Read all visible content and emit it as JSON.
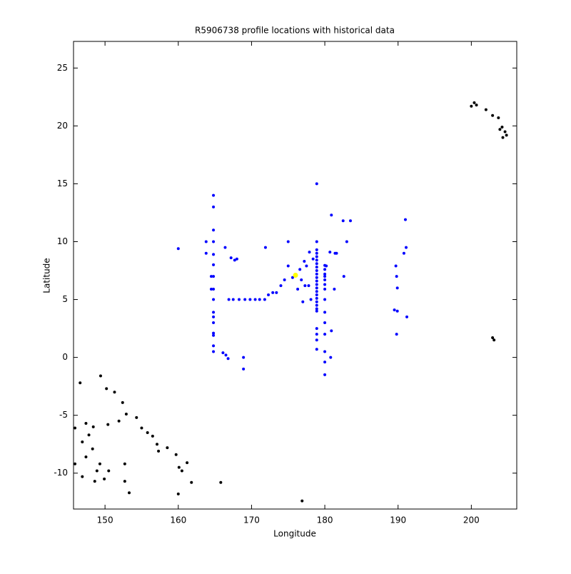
{
  "chart_data": {
    "type": "scatter",
    "title": "R5906738 profile locations with historical data",
    "xlabel": "Longitude",
    "ylabel": "Latitude",
    "xlim": [
      145.7,
      206.2
    ],
    "ylim": [
      -13.1,
      27.3
    ],
    "xticks": [
      150,
      160,
      170,
      180,
      190,
      200
    ],
    "yticks": [
      -10,
      -5,
      0,
      5,
      10,
      15,
      20,
      25
    ],
    "series": [
      {
        "color": "#000000",
        "x": [
          200,
          200.4,
          200.7,
          202,
          202.9,
          203.7,
          204.2,
          204.6,
          204.8,
          204.3,
          203.9,
          202.9,
          203.1,
          176.9,
          165.8,
          160,
          153.3,
          152.7,
          152.7,
          154.3,
          155,
          155.8,
          156.5,
          157.1,
          158.5,
          159.7,
          160.1,
          161.2,
          161.8,
          157.3,
          160.5,
          146.6,
          149.4,
          150.2,
          151.3,
          152.4,
          152.9,
          151.9,
          150.4,
          148.4,
          147.4,
          145.9,
          146.9,
          147.4,
          148.9,
          149.9,
          150.5,
          149.3,
          148.3,
          147.8,
          145.9,
          146.9,
          148.6
        ],
        "y": [
          21.7,
          22,
          21.8,
          21.4,
          20.9,
          20.7,
          19.9,
          19.5,
          19.2,
          19,
          19.7,
          1.7,
          1.5,
          -12.4,
          -10.8,
          -11.8,
          -11.7,
          -10.7,
          -9.2,
          -5.2,
          -6.1,
          -6.5,
          -6.8,
          -7.5,
          -7.8,
          -8.4,
          -9.5,
          -9.1,
          -10.8,
          -8.1,
          -9.8,
          -2.2,
          -1.6,
          -2.7,
          -3,
          -3.9,
          -4.9,
          -5.5,
          -5.8,
          -6,
          -5.7,
          -6.1,
          -7.3,
          -8.6,
          -9.8,
          -10.5,
          -9.8,
          -9.2,
          -7.9,
          -6.7,
          -9.2,
          -10.3,
          -10.7
        ]
      },
      {
        "color": "#0000ff",
        "x": [
          160,
          163.8,
          163.8,
          164.8,
          164.8,
          164.8,
          164.8,
          164.8,
          164.8,
          164.8,
          164.5,
          164.8,
          164.5,
          164.8,
          164.8,
          164.8,
          164.8,
          164.8,
          164.8,
          164.8,
          164.8,
          166.1,
          166.5,
          166.8,
          166.4,
          167.2,
          167.7,
          168,
          166.9,
          167.5,
          168.3,
          169.1,
          169.8,
          170.5,
          171.1,
          171.8,
          168.9,
          168.9,
          171.9,
          172.3,
          172.9,
          173.4,
          174,
          174.5,
          175,
          175,
          175.6,
          176.3,
          176.6,
          176.8,
          177,
          177.2,
          177.3,
          177.5,
          177.8,
          177.9,
          178.1,
          178.4,
          178.9,
          178.9,
          178.9,
          178.9,
          178.9,
          178.9,
          178.9,
          178.9,
          178.9,
          178.9,
          178.9,
          178.9,
          178.9,
          178.9,
          178.9,
          178.9,
          178.9,
          178.9,
          178.9,
          178.9,
          178.9,
          178.9,
          178.9,
          178.9,
          178.9,
          180,
          180,
          180,
          180,
          180,
          180,
          180,
          180,
          180,
          180,
          180,
          180,
          180,
          180,
          180.2,
          180.7,
          180.8,
          180.9,
          180.9,
          181.3,
          181.4,
          181.6,
          182.5,
          182.6,
          183,
          183.5,
          189.7,
          189.8,
          189.9,
          189.5,
          189.9,
          189.8,
          190.8,
          191.1,
          191,
          191.2
        ],
        "y": [
          9.4,
          10,
          9,
          14,
          13,
          11,
          10,
          8.9,
          8,
          7,
          7,
          5.9,
          5.9,
          5,
          3.9,
          3.5,
          3,
          2.1,
          1.9,
          1,
          0.5,
          0.4,
          0.2,
          -0.1,
          9.5,
          8.6,
          8.4,
          8.5,
          5,
          5,
          5,
          5,
          5,
          5,
          5,
          5,
          0,
          -1,
          9.5,
          5.4,
          5.6,
          5.6,
          6.2,
          6.7,
          10,
          7.9,
          6.9,
          5.9,
          7.6,
          6.7,
          4.8,
          8.3,
          6.2,
          7.9,
          6.2,
          9.1,
          5,
          8.5,
          15,
          10,
          9.3,
          9,
          8.7,
          8.4,
          8.1,
          7.8,
          7.5,
          7.2,
          6.9,
          6.6,
          6.3,
          6,
          5.7,
          5.4,
          5.1,
          4.8,
          4.5,
          4.2,
          4,
          2.5,
          2,
          1.5,
          0.7,
          7.95,
          7.6,
          7.2,
          7,
          6.7,
          6.3,
          5.9,
          5,
          3.9,
          3,
          2,
          0.5,
          -0.4,
          -1.5,
          7.9,
          9.1,
          0,
          2.3,
          12.3,
          5.9,
          9,
          9,
          11.8,
          7,
          10,
          11.8,
          7.9,
          7,
          6,
          4.1,
          4,
          2,
          9,
          9.5,
          11.9,
          3.5
        ]
      },
      {
        "color": "#ffff00",
        "x": [
          176
        ],
        "y": [
          7.1
        ]
      }
    ]
  }
}
